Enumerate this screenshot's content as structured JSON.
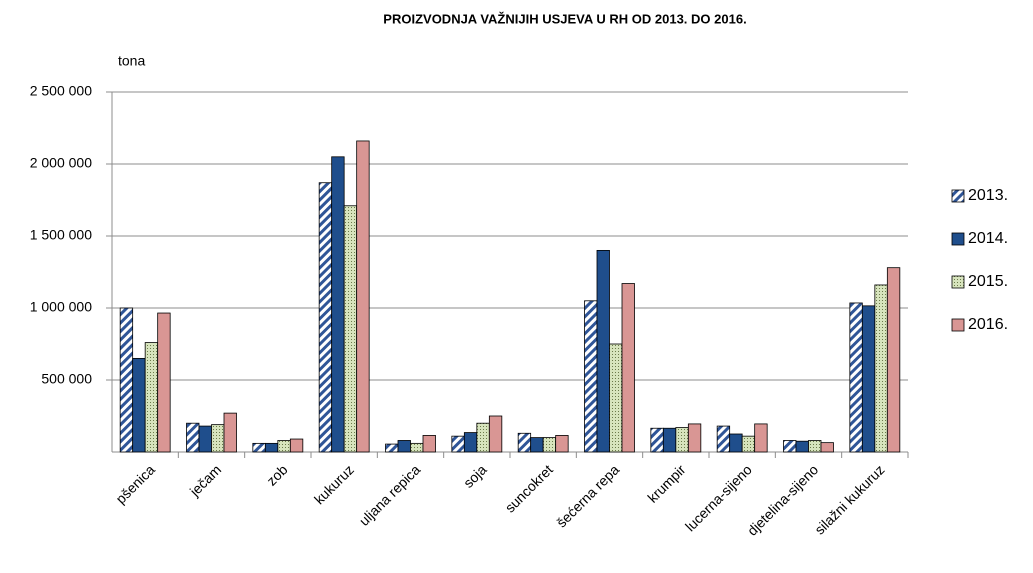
{
  "chart_data": {
    "type": "bar",
    "title": "PROIZVODNJA VAŽNIJIH USJEVA U RH OD 2013. DO 2016.",
    "y_label": "tona",
    "categories": [
      "pšenica",
      "ječam",
      "zob",
      "kukuruz",
      "uljana repica",
      "soja",
      "suncokret",
      "šećerna repa",
      "krumpir",
      "lucerna-sijeno",
      "djetelina-sijeno",
      "silažni kukuruz"
    ],
    "series": [
      {
        "name": "2013.",
        "color": "#2f5597",
        "pattern": "hatch",
        "values": [
          1000000,
          200000,
          60000,
          1870000,
          55000,
          110000,
          130000,
          1050000,
          165000,
          180000,
          80000,
          1035000
        ]
      },
      {
        "name": "2014.",
        "color": "#1f4e8c",
        "pattern": "solid",
        "values": [
          650000,
          180000,
          60000,
          2050000,
          80000,
          135000,
          100000,
          1400000,
          165000,
          125000,
          75000,
          1015000
        ]
      },
      {
        "name": "2015.",
        "color": "#d7e4bd",
        "pattern": "dots",
        "values": [
          760000,
          190000,
          80000,
          1710000,
          60000,
          200000,
          100000,
          750000,
          170000,
          110000,
          80000,
          1160000
        ]
      },
      {
        "name": "2016.",
        "color": "#d99694",
        "pattern": "solid",
        "values": [
          965000,
          270000,
          90000,
          2160000,
          115000,
          250000,
          115000,
          1170000,
          195000,
          195000,
          65000,
          1280000
        ]
      }
    ],
    "ylim": [
      0,
      2500000
    ],
    "yticks": [
      {
        "value": 500000,
        "label": "500 000"
      },
      {
        "value": 1000000,
        "label": "1 000 000"
      },
      {
        "value": 1500000,
        "label": "1 500 000"
      },
      {
        "value": 2000000,
        "label": "2 000 000"
      },
      {
        "value": 2500000,
        "label": "2 500 000"
      }
    ],
    "grid": true,
    "legend": "right"
  }
}
